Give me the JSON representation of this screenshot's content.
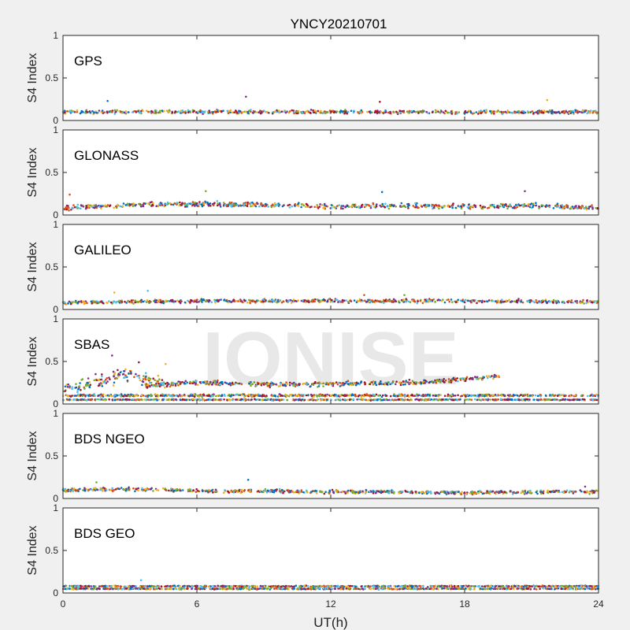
{
  "figure": {
    "title": "YNCY20210701",
    "xlabel": "UT(h)",
    "watermark": "IONISE"
  },
  "colors": [
    "#0072BD",
    "#D95319",
    "#EDB120",
    "#7E2F8E",
    "#77AC30",
    "#4DBEEE",
    "#A2142F"
  ],
  "chart_data": [
    {
      "type": "scatter",
      "panel": "GPS",
      "ylabel": "S4 Index",
      "xlim": [
        0,
        24
      ],
      "ylim": [
        0,
        1
      ],
      "xticks": [
        "0",
        "6",
        "12",
        "18",
        "24"
      ],
      "yticks": [
        "0",
        "0.5",
        "1"
      ],
      "series_profile": [
        {
          "x": [
            0,
            24
          ],
          "y": [
            0.1,
            0.1
          ],
          "spread": 0.03
        }
      ],
      "outliers": [
        {
          "x": 2.0,
          "y": 0.23
        },
        {
          "x": 8.2,
          "y": 0.28
        },
        {
          "x": 14.2,
          "y": 0.22
        },
        {
          "x": 21.7,
          "y": 0.24
        }
      ]
    },
    {
      "type": "scatter",
      "panel": "GLONASS",
      "ylabel": "S4 Index",
      "xlim": [
        0,
        24
      ],
      "ylim": [
        0,
        1
      ],
      "xticks": [
        "0",
        "6",
        "12",
        "18",
        "24"
      ],
      "yticks": [
        "0",
        "0.5",
        "1"
      ],
      "series_profile": [
        {
          "x": [
            0,
            3,
            6,
            9,
            12,
            15,
            18,
            21,
            24
          ],
          "y": [
            0.08,
            0.12,
            0.13,
            0.12,
            0.1,
            0.11,
            0.1,
            0.11,
            0.08
          ],
          "spread": 0.04
        }
      ],
      "outliers": [
        {
          "x": 0.3,
          "y": 0.24
        },
        {
          "x": 6.4,
          "y": 0.28
        },
        {
          "x": 14.3,
          "y": 0.27
        },
        {
          "x": 20.7,
          "y": 0.28
        }
      ]
    },
    {
      "type": "scatter",
      "panel": "GALILEO",
      "ylabel": "S4 Index",
      "xlim": [
        0,
        24
      ],
      "ylim": [
        0,
        1
      ],
      "xticks": [
        "0",
        "6",
        "12",
        "18",
        "24"
      ],
      "yticks": [
        "0",
        "0.5",
        "1"
      ],
      "series_profile": [
        {
          "x": [
            0,
            6,
            12,
            18,
            24
          ],
          "y": [
            0.08,
            0.1,
            0.1,
            0.1,
            0.09
          ],
          "spread": 0.03
        }
      ],
      "outliers": [
        {
          "x": 2.3,
          "y": 0.2
        },
        {
          "x": 3.8,
          "y": 0.22
        },
        {
          "x": 13.5,
          "y": 0.17
        },
        {
          "x": 15.3,
          "y": 0.17
        }
      ]
    },
    {
      "type": "scatter",
      "panel": "SBAS",
      "ylabel": "S4 Index",
      "xlim": [
        0,
        24
      ],
      "ylim": [
        0,
        1
      ],
      "xticks": [
        "0",
        "6",
        "12",
        "18",
        "24"
      ],
      "yticks": [
        "0",
        "0.5",
        "1"
      ],
      "series_profile": [
        {
          "x": [
            0,
            24
          ],
          "y": [
            0.05,
            0.05
          ],
          "spread": 0.01
        },
        {
          "x": [
            0,
            24
          ],
          "y": [
            0.1,
            0.1
          ],
          "spread": 0.02
        },
        {
          "x": [
            0,
            4,
            6,
            10,
            16,
            19.7
          ],
          "y": [
            0.12,
            0.22,
            0.25,
            0.23,
            0.25,
            0.33
          ],
          "spread": 0.04,
          "range": [
            3.5,
            19.7
          ]
        },
        {
          "x": [
            0,
            1.5,
            3,
            4.5,
            6,
            24
          ],
          "y": [
            0.15,
            0.28,
            0.35,
            0.25,
            0.12,
            0.15
          ],
          "spread": 0.12,
          "range": [
            0,
            5
          ]
        }
      ],
      "outliers": [
        {
          "x": 2.2,
          "y": 0.57
        },
        {
          "x": 3.4,
          "y": 0.49
        },
        {
          "x": 4.6,
          "y": 0.47
        }
      ]
    },
    {
      "type": "scatter",
      "panel": "BDS NGEO",
      "ylabel": "S4 Index",
      "xlim": [
        0,
        24
      ],
      "ylim": [
        0,
        1
      ],
      "xticks": [
        "0",
        "6",
        "12",
        "18",
        "24"
      ],
      "yticks": [
        "0",
        "0.5",
        "1"
      ],
      "series_profile": [
        {
          "x": [
            0,
            3,
            6,
            12,
            18,
            24
          ],
          "y": [
            0.1,
            0.11,
            0.09,
            0.08,
            0.07,
            0.08
          ],
          "spread": 0.03
        }
      ],
      "outliers": [
        {
          "x": 1.5,
          "y": 0.19
        },
        {
          "x": 8.3,
          "y": 0.22
        },
        {
          "x": 23.4,
          "y": 0.14
        }
      ]
    },
    {
      "type": "scatter",
      "panel": "BDS GEO",
      "ylabel": "S4 Index",
      "xlim": [
        0,
        24
      ],
      "ylim": [
        0,
        1
      ],
      "xticks": [
        "0",
        "6",
        "12",
        "18",
        "24"
      ],
      "yticks": [
        "0",
        "0.5",
        "1"
      ],
      "series_profile": [
        {
          "x": [
            0,
            24
          ],
          "y": [
            0.05,
            0.05
          ],
          "spread": 0.01
        },
        {
          "x": [
            0,
            24
          ],
          "y": [
            0.08,
            0.08
          ],
          "spread": 0.01
        }
      ],
      "outliers": [
        {
          "x": 3.5,
          "y": 0.15
        }
      ]
    }
  ]
}
